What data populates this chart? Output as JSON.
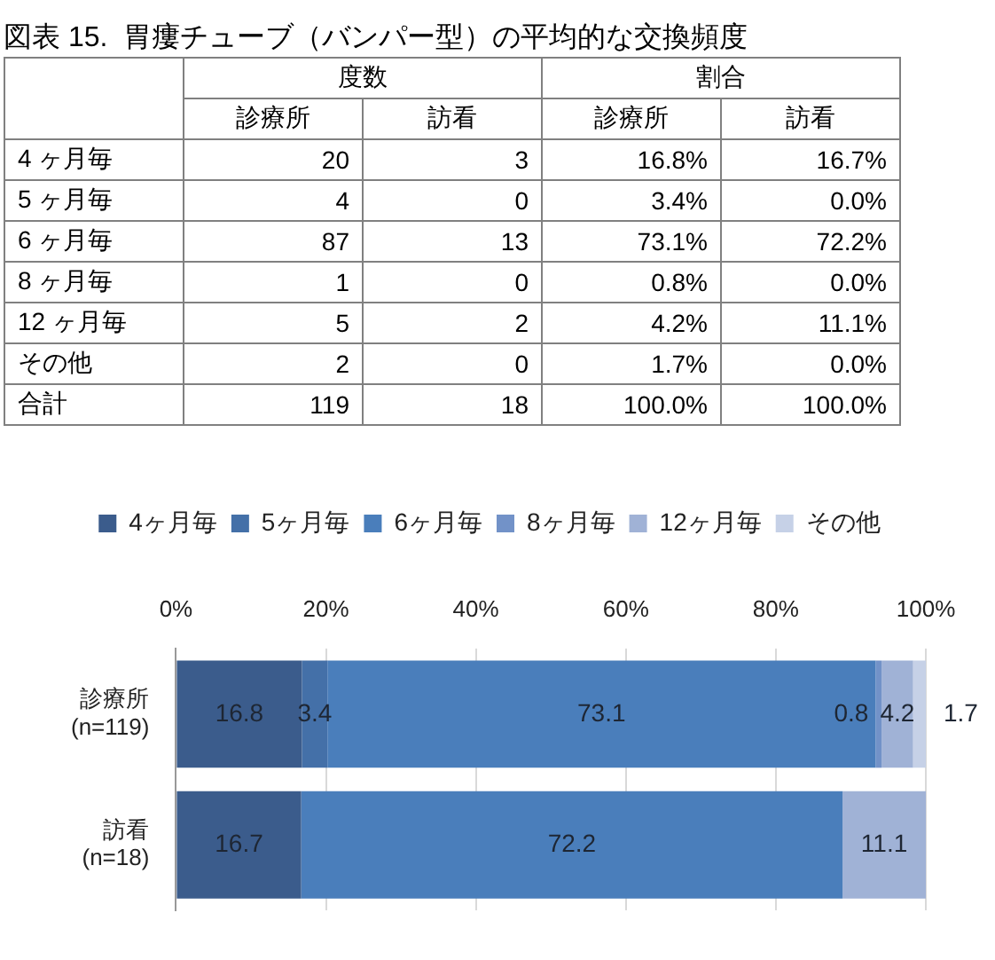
{
  "chart_data": [
    {
      "type": "heatmap",
      "title": "図表 15.  胃瘻チューブ（バンパー型）の平均的な交換頻度",
      "annotations": [
        "度数",
        "割合"
      ],
      "categories": [
        "診療所",
        "訪看",
        "診療所",
        "訪看"
      ],
      "y_categories": [
        "4 ヶ月毎",
        "5 ヶ月毎",
        "6 ヶ月毎",
        "8 ヶ月毎",
        "12 ヶ月毎",
        "その他",
        "合計"
      ],
      "cells": [
        [
          20,
          3,
          16.8,
          16.7
        ],
        [
          4,
          0,
          3.4,
          0.0
        ],
        [
          87,
          13,
          73.1,
          72.2
        ],
        [
          1,
          0,
          0.8,
          0.0
        ],
        [
          5,
          2,
          4.2,
          11.1
        ],
        [
          2,
          0,
          1.7,
          0.0
        ],
        [
          119,
          18,
          100.0,
          100.0
        ]
      ],
      "cell_labels": [
        [
          "20",
          "3",
          "16.8%",
          "16.7%"
        ],
        [
          "4",
          "0",
          "3.4%",
          "0.0%"
        ],
        [
          "87",
          "13",
          "73.1%",
          "72.2%"
        ],
        [
          "1",
          "0",
          "0.8%",
          "0.0%"
        ],
        [
          "5",
          "2",
          "4.2%",
          "11.1%"
        ],
        [
          "2",
          "0",
          "1.7%",
          "0.0%"
        ],
        [
          "119",
          "18",
          "100.0%",
          "100.0%"
        ]
      ]
    },
    {
      "type": "bar",
      "orientation": "horizontal",
      "stacked": true,
      "categories": [
        "診療所\n(n=119)",
        "訪看\n(n=18)"
      ],
      "series": [
        {
          "name": "4ヶ月毎",
          "color": "#3b5c8c",
          "values": [
            16.8,
            16.7
          ],
          "value_labels": [
            "16.8",
            "16.7"
          ]
        },
        {
          "name": "5ヶ月毎",
          "color": "#4470a8",
          "values": [
            3.4,
            0.0
          ],
          "value_labels": [
            "3.4",
            null
          ]
        },
        {
          "name": "6ヶ月毎",
          "color": "#4a7ebb",
          "values": [
            73.1,
            72.2
          ],
          "value_labels": [
            "73.1",
            "72.2"
          ]
        },
        {
          "name": "8ヶ月毎",
          "color": "#7292c8",
          "values": [
            0.8,
            0.0
          ],
          "value_labels": [
            "0.8",
            null
          ]
        },
        {
          "name": "12ヶ月毎",
          "color": "#a0b2d6",
          "values": [
            4.2,
            11.1
          ],
          "value_labels": [
            "4.2",
            "11.1"
          ]
        },
        {
          "name": "その他",
          "color": "#c6d1e7",
          "values": [
            1.7,
            0.0
          ],
          "value_labels": [
            "1.7",
            null
          ]
        }
      ],
      "xlim": [
        0,
        100
      ],
      "xticks": [
        {
          "value": 0,
          "label": "0%"
        },
        {
          "value": 20,
          "label": "20%"
        },
        {
          "value": 40,
          "label": "40%"
        },
        {
          "value": 60,
          "label": "60%"
        },
        {
          "value": 80,
          "label": "80%"
        },
        {
          "value": 100,
          "label": "100%"
        }
      ],
      "grid": "x",
      "legend": "top"
    }
  ]
}
